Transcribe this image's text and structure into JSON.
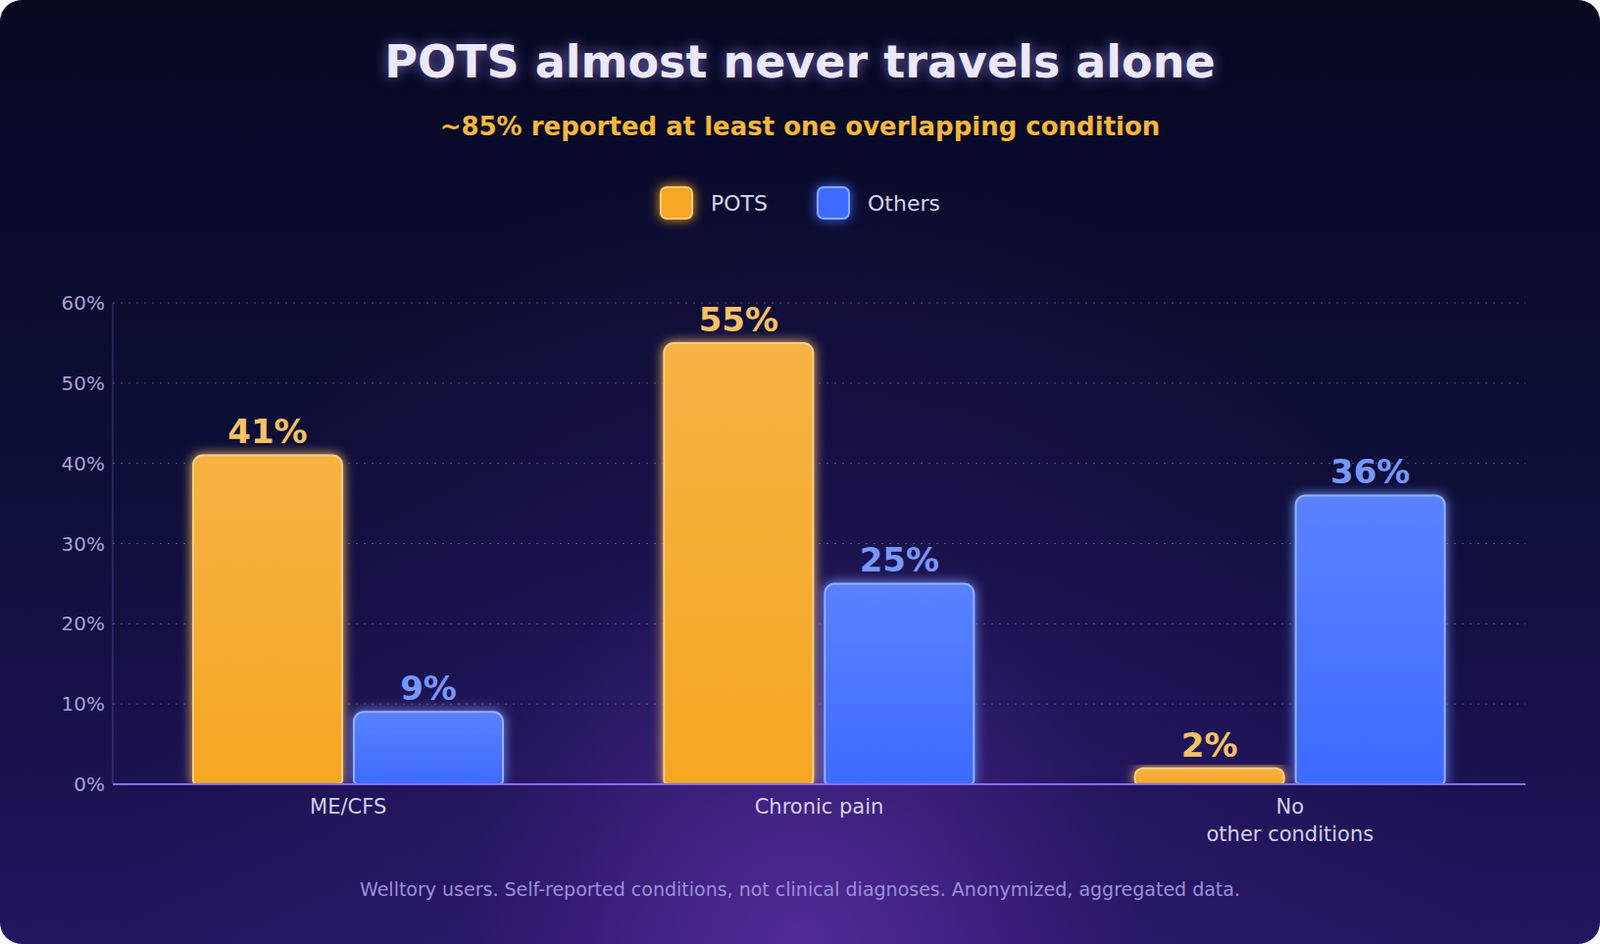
{
  "chart_data": {
    "type": "bar",
    "title": "POTS almost never travels alone",
    "subtitle": "~85% reported at least one overlapping condition",
    "categories": [
      "ME/CFS",
      "Chronic pain",
      "No other conditions"
    ],
    "series": [
      {
        "name": "POTS",
        "color": "#f5a623",
        "values": [
          41,
          55,
          2
        ],
        "value_labels": [
          "41%",
          "55%",
          "2%"
        ]
      },
      {
        "name": "Others",
        "color": "#3d6bff",
        "values": [
          9,
          25,
          36
        ],
        "value_labels": [
          "9%",
          "25%",
          "36%"
        ]
      }
    ],
    "ylim": [
      0,
      60
    ],
    "yticks": [
      {
        "value": 0,
        "label": "0%"
      },
      {
        "value": 10,
        "label": "10%"
      },
      {
        "value": 20,
        "label": "20%"
      },
      {
        "value": 30,
        "label": "30%"
      },
      {
        "value": 40,
        "label": "40%"
      },
      {
        "value": 50,
        "label": "50%"
      },
      {
        "value": 60,
        "label": "60%"
      }
    ],
    "grid": true,
    "legend": "top",
    "data_labels": true,
    "annotations": [
      "Welltory users. Self-reported conditions, not clinical diagnoses. Anonymized, aggregated data."
    ]
  }
}
